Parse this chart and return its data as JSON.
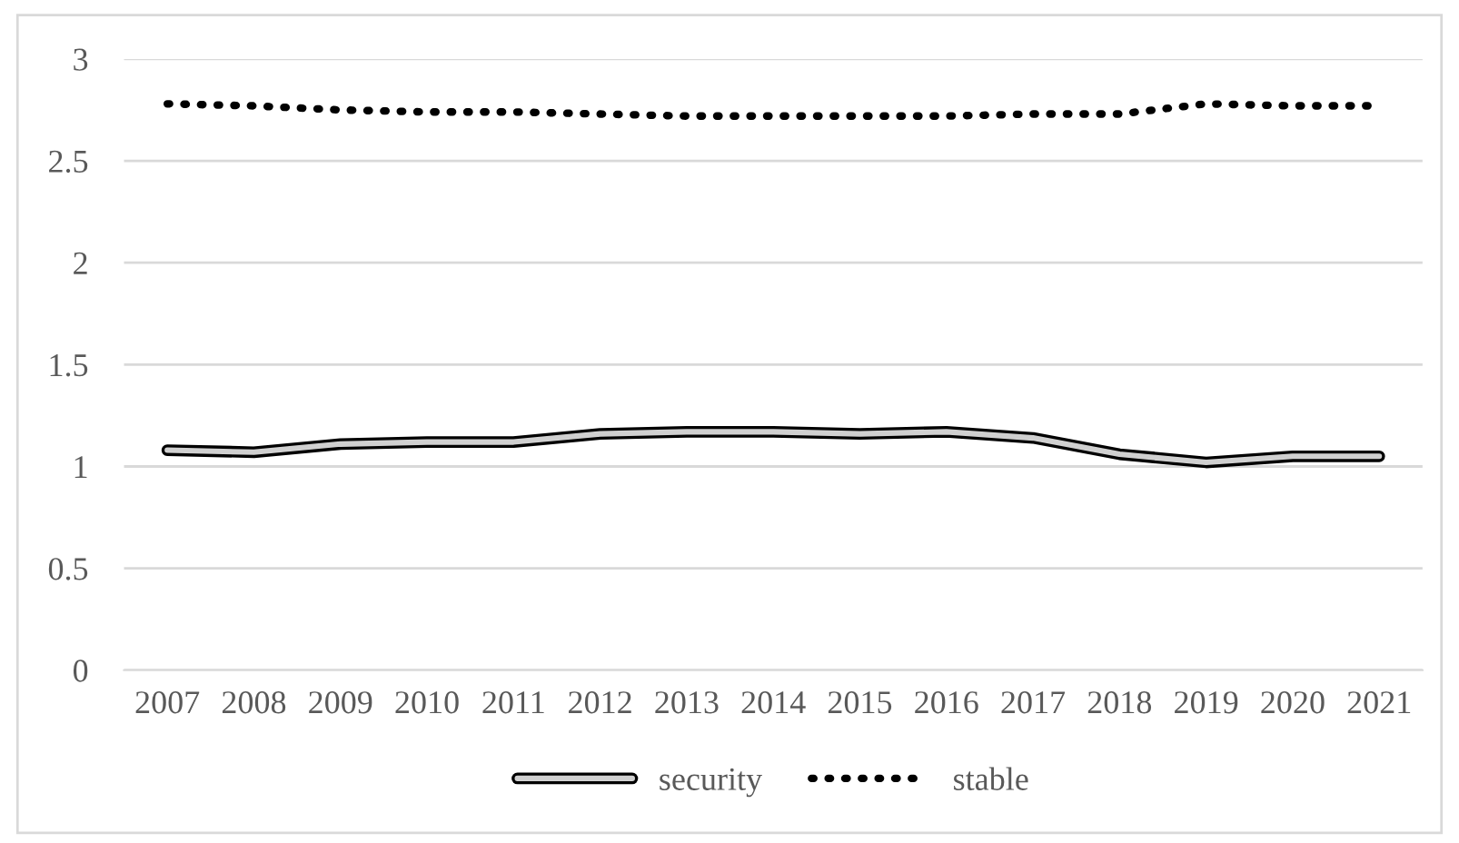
{
  "chart_data": {
    "type": "line",
    "categories": [
      "2007",
      "2008",
      "2009",
      "2010",
      "2011",
      "2012",
      "2013",
      "2014",
      "2015",
      "2016",
      "2017",
      "2018",
      "2019",
      "2020",
      "2021"
    ],
    "series": [
      {
        "name": "security",
        "color": "#000000",
        "line_style": "solid",
        "values": [
          1.08,
          1.07,
          1.11,
          1.12,
          1.12,
          1.16,
          1.17,
          1.17,
          1.16,
          1.17,
          1.14,
          1.06,
          1.02,
          1.05,
          1.05
        ]
      },
      {
        "name": "stable",
        "color": "#000000",
        "line_style": "dotted",
        "values": [
          2.78,
          2.77,
          2.75,
          2.74,
          2.74,
          2.73,
          2.72,
          2.72,
          2.72,
          2.72,
          2.73,
          2.73,
          2.78,
          2.77,
          2.77
        ]
      }
    ],
    "ylim": [
      0,
      3
    ],
    "yticks": [
      0,
      0.5,
      1,
      1.5,
      2,
      2.5,
      3
    ],
    "grid": "y",
    "legend": "bottom",
    "marker": "none"
  }
}
